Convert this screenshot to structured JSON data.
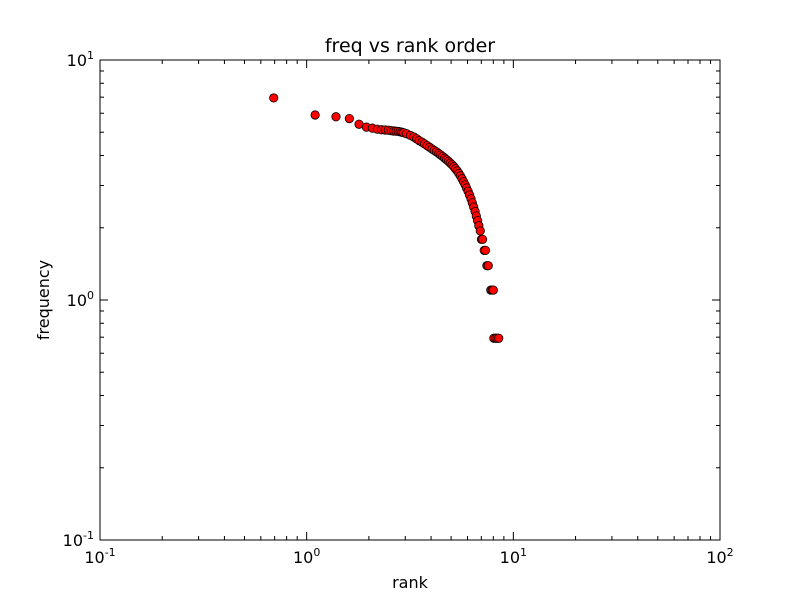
{
  "chart_data": {
    "type": "scatter",
    "title": "freq vs rank order",
    "xlabel": "rank",
    "ylabel": "frequency",
    "xscale": "log",
    "yscale": "log",
    "xlim": [
      0.1,
      100
    ],
    "ylim": [
      0.1,
      10
    ],
    "xticks": [
      {
        "value": 0.1,
        "base": "10",
        "exp": "-1"
      },
      {
        "value": 1,
        "base": "10",
        "exp": "0"
      },
      {
        "value": 10,
        "base": "10",
        "exp": "1"
      },
      {
        "value": 100,
        "base": "10",
        "exp": "2"
      }
    ],
    "yticks": [
      {
        "value": 0.1,
        "base": "10",
        "exp": "-1"
      },
      {
        "value": 1,
        "base": "10",
        "exp": "0"
      },
      {
        "value": 10,
        "base": "10",
        "exp": "1"
      }
    ],
    "marker_color": "#ff0000",
    "marker_edge_color": "#000000",
    "series": [
      {
        "name": "freq",
        "points": [
          [
            0.693,
            6.95
          ],
          [
            1.099,
            5.9
          ],
          [
            1.386,
            5.8
          ],
          [
            1.609,
            5.7
          ],
          [
            1.792,
            5.4
          ],
          [
            1.946,
            5.25
          ],
          [
            2.079,
            5.2
          ],
          [
            2.197,
            5.15
          ],
          [
            2.303,
            5.12
          ],
          [
            2.398,
            5.11
          ],
          [
            2.485,
            5.1
          ],
          [
            2.565,
            5.08
          ],
          [
            2.639,
            5.06
          ],
          [
            2.708,
            5.05
          ],
          [
            2.773,
            5.04
          ],
          [
            2.833,
            5.02
          ],
          [
            2.89,
            5.0
          ],
          [
            2.944,
            4.98
          ],
          [
            3.045,
            4.93
          ],
          [
            3.178,
            4.85
          ],
          [
            3.296,
            4.78
          ],
          [
            3.401,
            4.7
          ],
          [
            3.497,
            4.62
          ],
          [
            3.611,
            4.55
          ],
          [
            3.714,
            4.48
          ],
          [
            3.829,
            4.4
          ],
          [
            3.932,
            4.33
          ],
          [
            4.043,
            4.26
          ],
          [
            4.143,
            4.2
          ],
          [
            4.248,
            4.14
          ],
          [
            4.357,
            4.08
          ],
          [
            4.454,
            4.02
          ],
          [
            4.554,
            3.96
          ],
          [
            4.654,
            3.9
          ],
          [
            4.754,
            3.84
          ],
          [
            4.86,
            3.78
          ],
          [
            4.956,
            3.72
          ],
          [
            5.056,
            3.66
          ],
          [
            5.156,
            3.59
          ],
          [
            5.25,
            3.52
          ],
          [
            5.35,
            3.45
          ],
          [
            5.45,
            3.37
          ],
          [
            5.547,
            3.29
          ],
          [
            5.645,
            3.2
          ],
          [
            5.746,
            3.11
          ],
          [
            5.846,
            3.02
          ],
          [
            5.94,
            2.93
          ],
          [
            6.04,
            2.84
          ],
          [
            6.14,
            2.74
          ],
          [
            6.24,
            2.64
          ],
          [
            6.33,
            2.54
          ],
          [
            6.43,
            2.44
          ],
          [
            6.53,
            2.34
          ],
          [
            6.62,
            2.24
          ],
          [
            6.72,
            2.14
          ],
          [
            6.81,
            2.04
          ],
          [
            6.92,
            1.94
          ],
          [
            7.01,
            1.79
          ],
          [
            7.1,
            1.79
          ],
          [
            7.23,
            1.61
          ],
          [
            7.33,
            1.61
          ],
          [
            7.45,
            1.39
          ],
          [
            7.56,
            1.39
          ],
          [
            7.78,
            1.1
          ],
          [
            7.9,
            1.1
          ],
          [
            8.0,
            1.1
          ],
          [
            8.05,
            0.693
          ],
          [
            8.2,
            0.693
          ],
          [
            8.35,
            0.693
          ],
          [
            8.5,
            0.693
          ]
        ]
      }
    ]
  }
}
